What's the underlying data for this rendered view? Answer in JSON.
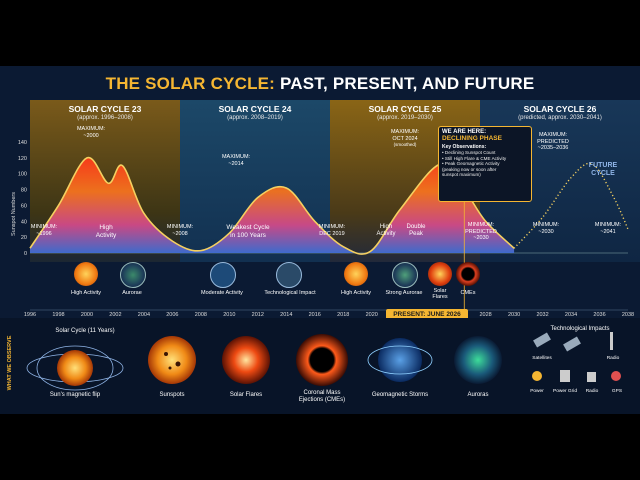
{
  "title_part1": "THE SOLAR CYCLE:",
  "title_part2": "PAST, PRESENT, AND FUTURE",
  "cycles": [
    {
      "name": "SOLAR CYCLE 23",
      "range": "(approx. 1996–2008)"
    },
    {
      "name": "SOLAR CYCLE 24",
      "range": "(approx. 2008–2019)"
    },
    {
      "name": "SOLAR CYCLE 25",
      "range": "(approx. 2019–2030)"
    },
    {
      "name": "SOLAR CYCLE 26",
      "range": "(predicted, approx. 2030–2041)"
    }
  ],
  "y_axis_label": "Sunspot Numbers",
  "y_ticks": [
    "140",
    "120",
    "100",
    "80",
    "60",
    "40",
    "20",
    "0"
  ],
  "x_ticks": [
    "1996",
    "1998",
    "2000",
    "2002",
    "2004",
    "2006",
    "2008",
    "2010",
    "2012",
    "2014",
    "2016",
    "2018",
    "2020",
    "2022",
    "2024",
    "2026",
    "2028",
    "2030",
    "2032",
    "2034",
    "2036",
    "2038"
  ],
  "annotations": {
    "max23": "MAXIMUM:\n~2000",
    "max24": "MAXIMUM:\n~2014",
    "max25": "MAXIMUM:\nOCT 2024",
    "max25_sub": "(smoothed)",
    "max26": "MAXIMUM:\nPREDICTED\n~2035–2036",
    "min1996": "MINIMUM:\n~1996",
    "min2008": "MINIMUM:\n~2008",
    "min2019": "MINIMUM:\nDEC 2019",
    "min2030": "MINIMUM:\nPREDICTED\n~2030",
    "min2030b": "MINIMUM:\n~2030",
    "min2041": "MINIMUM:\n~2041",
    "high23": "High\nActivity",
    "weak24": "Weakest Cycle\nin 100 Years",
    "high25": "High\nActivity",
    "double25": "Double\nPeak",
    "future": "FUTURE\nCYCLE"
  },
  "here_box": {
    "title": "WE ARE HERE:",
    "phase": "DECLINING PHASE",
    "heading": "Key Observations:",
    "items": [
      "• Declining Sunspot Count",
      "• Still High Flare & CME Activity",
      "• Peak Geomagnetic Activity\n  (peaking now or soon after\n  sunspot maximum)"
    ]
  },
  "icon_labels": [
    "High Activity",
    "Aurorae",
    "Moderate Activity",
    "Technological Impact",
    "High Activity",
    "Strong Aurorae",
    "Solar\nFlares",
    "CMEs"
  ],
  "present_label": "PRESENT: JUNE 2026",
  "observe_side": "WHAT WE OBSERVE",
  "observe_title": "Solar Cycle (11 Years)",
  "observe_items": [
    "Sun's magnetic flip",
    "Sunspots",
    "Solar Flares",
    "Coronal Mass\nEjections (CMEs)",
    "Geomagnetic Storms",
    "Auroras"
  ],
  "tech": {
    "title": "Technological Impacts",
    "items": [
      "Satellites",
      "Radio",
      "Power",
      "Power Grid",
      "Radio",
      "GPS"
    ]
  },
  "chart_data": {
    "type": "area",
    "ylabel": "Sunspot Numbers",
    "ylim": [
      0,
      140
    ],
    "xlim": [
      1996,
      2038
    ],
    "series": [
      {
        "values": [
          [
            1996,
            6
          ],
          [
            1998,
            60
          ],
          [
            2000,
            120
          ],
          [
            2001.5,
            88
          ],
          [
            2002.5,
            110
          ],
          [
            2004,
            50
          ],
          [
            2006,
            15
          ],
          [
            2008,
            3
          ],
          [
            2010,
            25
          ],
          [
            2012,
            70
          ],
          [
            2014,
            82
          ],
          [
            2016,
            40
          ],
          [
            2018,
            8
          ],
          [
            2019.9,
            2
          ],
          [
            2022,
            55
          ],
          [
            2024.8,
            112
          ],
          [
            2026.5,
            80
          ],
          [
            2028,
            40
          ],
          [
            2030,
            6
          ]
        ]
      },
      {
        "values": [
          [
            2030,
            6
          ],
          [
            2032,
            45
          ],
          [
            2034,
            95
          ],
          [
            2035.5,
            112
          ],
          [
            2037,
            70
          ],
          [
            2038,
            30
          ]
        ]
      }
    ]
  }
}
